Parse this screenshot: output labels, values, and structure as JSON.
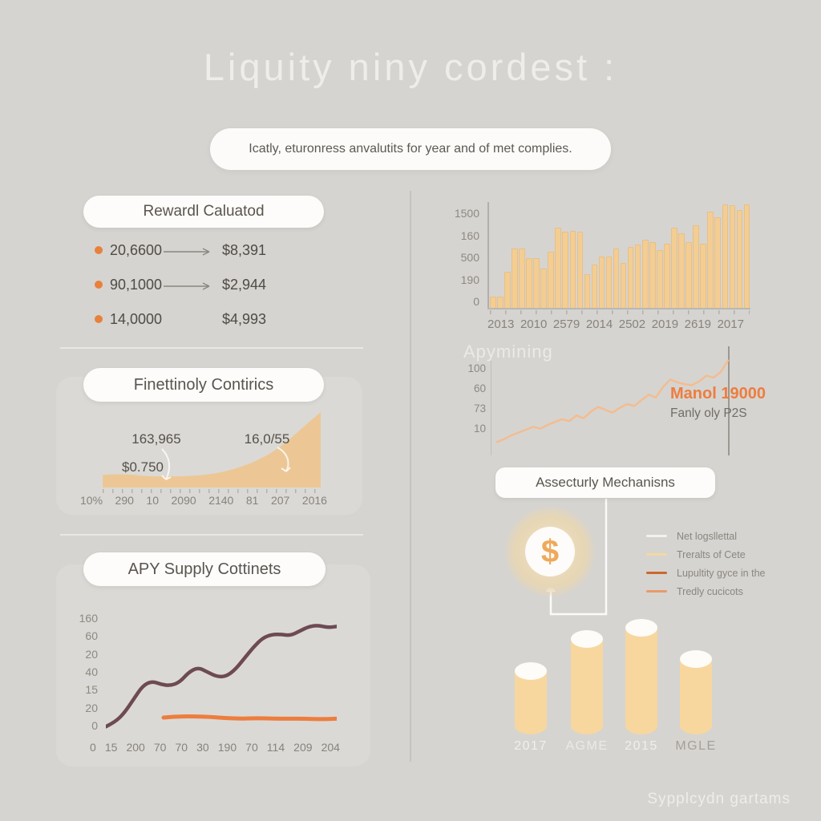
{
  "page": {
    "title": "Liquity niny cordest :",
    "subtitle": "Icatly, eturonress anvalutits for year and of met complies.",
    "footer": "Sypplcydn gartams"
  },
  "reward_section": {
    "header": "Rewardl Caluatod",
    "rows": [
      {
        "amount": "20,6600",
        "value": "$8,391",
        "arrow": true
      },
      {
        "amount": "90,1000",
        "value": "$2,944",
        "arrow": true
      },
      {
        "amount": "14,0000",
        "value": "$4,993",
        "arrow": false
      }
    ]
  },
  "area_section": {
    "header": "Finettinoly Contirics",
    "annotation_top_left": "163,965",
    "annotation_bottom_left": "$0.750",
    "annotation_right": "16,0/55"
  },
  "apy_section": {
    "header": "APY Supply Cottinets"
  },
  "mining_section": {
    "title": "Apymining",
    "label_primary": "Manol 19000",
    "label_secondary": "Fanly oly P2S"
  },
  "mechanisms_section": {
    "header": "Assecturly Mechanisns",
    "icon": "dollar-icon",
    "dollar_symbol": "$",
    "legend": [
      {
        "label": "Net logsllettal",
        "color": "#f3f1ec"
      },
      {
        "label": "Treralts of Cete",
        "color": "#f3d9a0"
      },
      {
        "label": "Lupultity gyce in the",
        "color": "#c9682f"
      },
      {
        "label": "Tredly cucicots",
        "color": "#e99a6b"
      }
    ]
  },
  "colors": {
    "background": "#d6d4d0",
    "accent_orange": "#e8813c",
    "bar_tan": "#f4cd92",
    "area_tan": "#ecc795",
    "line_maroon": "#6d4a54",
    "line_orange": "#ed7d3f",
    "mining_line": "#f2bd92",
    "card_gray": "#dbd9d5"
  },
  "chart_data": [
    {
      "id": "volume-bars",
      "type": "bar",
      "categories": [
        "2013",
        "2010",
        "2579",
        "2014",
        "2502",
        "2019",
        "2619",
        "2017"
      ],
      "yticks": [
        "1500",
        "160",
        "500",
        "190",
        "0"
      ],
      "values": [
        10,
        10,
        33,
        55,
        55,
        46,
        46,
        36,
        52,
        75,
        71,
        72,
        71,
        31,
        40,
        48,
        48,
        55,
        42,
        57,
        59,
        64,
        61,
        54,
        60,
        75,
        70,
        61,
        77,
        60,
        90,
        85,
        97,
        96,
        92,
        97
      ],
      "ylim": [
        0,
        100
      ],
      "bar_color": "#f4cd92"
    },
    {
      "id": "supply-area",
      "type": "area",
      "xticks": [
        "10%",
        "290",
        "10",
        "2090",
        "2140",
        "81",
        "207",
        "2016"
      ],
      "values": [
        15,
        16,
        15,
        13,
        13,
        13,
        14,
        16,
        20,
        26,
        34,
        45,
        60,
        78,
        95
      ],
      "ylim": [
        0,
        100
      ],
      "fill_color": "#ecc795"
    },
    {
      "id": "apy-lines",
      "type": "line",
      "yticks": [
        "160",
        "60",
        "20",
        "40",
        "15",
        "20",
        "0"
      ],
      "xticks": [
        "0",
        "15",
        "200",
        "70",
        "70",
        "30",
        "190",
        "70",
        "114",
        "209",
        "204"
      ],
      "series": [
        {
          "name": "apy-main",
          "color": "#6d4a54",
          "width": 4.5,
          "x_start": 0,
          "x_end": 100,
          "values": [
            4,
            8,
            16,
            28,
            40,
            44,
            41,
            40,
            43,
            52,
            56,
            52,
            48,
            48,
            54,
            64,
            74,
            82,
            85,
            85,
            84,
            88,
            92,
            93,
            91,
            92
          ]
        },
        {
          "name": "apy-flat",
          "color": "#ed7d3f",
          "width": 5,
          "x_start": 25,
          "x_end": 100,
          "values": [
            12,
            13,
            13,
            12.5,
            11.5,
            11,
            11.5,
            11,
            11,
            11,
            10.5,
            11
          ]
        }
      ],
      "ylim": [
        0,
        100
      ]
    },
    {
      "id": "mining-line",
      "type": "line",
      "yticks": [
        "100",
        "60",
        "73",
        "10"
      ],
      "color": "#f2bd92",
      "values": [
        10,
        13,
        17,
        20,
        23,
        26,
        24,
        28,
        31,
        34,
        32,
        38,
        35,
        42,
        47,
        44,
        41,
        46,
        50,
        48,
        54,
        60,
        57,
        68,
        76,
        73,
        71,
        70,
        74,
        80,
        78,
        84,
        96
      ],
      "ylim": [
        0,
        100
      ]
    },
    {
      "id": "cylinder-chart",
      "type": "cylinder-bar",
      "categories": [
        "2017",
        "AGME",
        "2015",
        "MGLE"
      ],
      "values": [
        79,
        119,
        133,
        94
      ],
      "label_colors": [
        "#f2efe9",
        "#eceae4",
        "#f2efe9",
        "#a49f98"
      ],
      "body_color": "#f7d79e"
    }
  ]
}
